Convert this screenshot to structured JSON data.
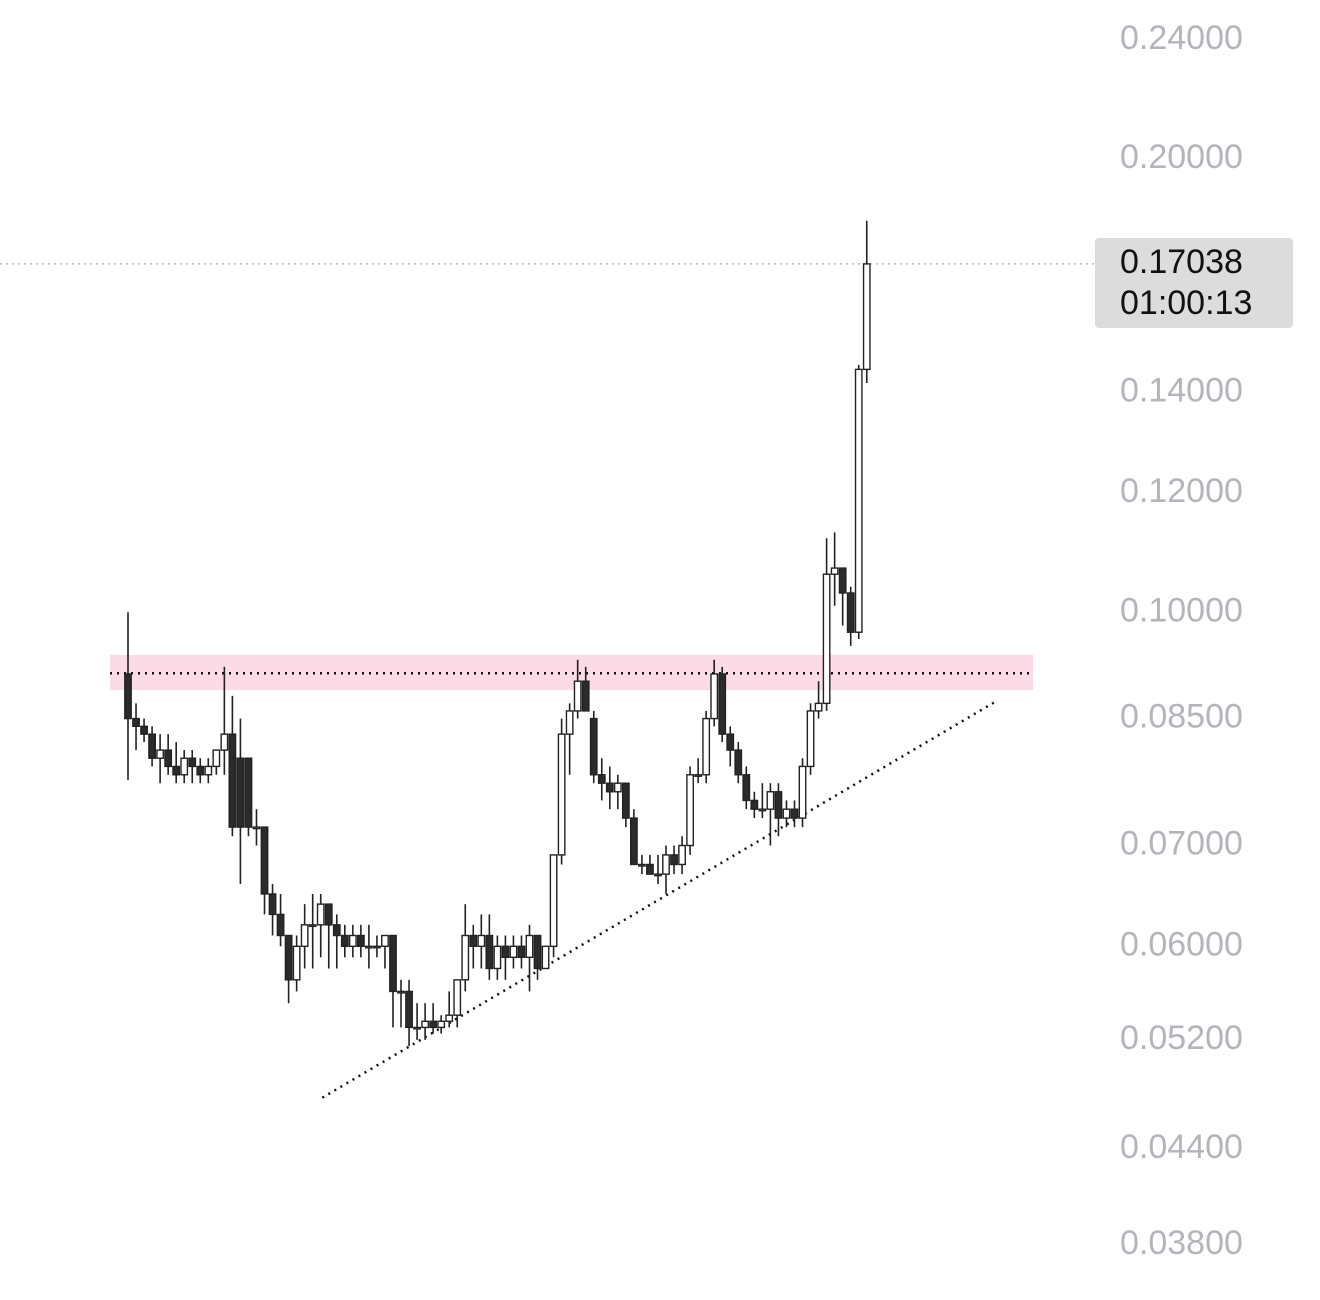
{
  "chart_data": {
    "type": "candlestick",
    "open": [
      0.091,
      0.085,
      0.084,
      0.083,
      0.08,
      0.081,
      0.079,
      0.078,
      0.08,
      0.079,
      0.078,
      0.079,
      0.081,
      0.083,
      0.08,
      0.08,
      0.072,
      0.072,
      0.065,
      0.063,
      0.061,
      0.057,
      0.06,
      0.062,
      0.062,
      0.064,
      0.062,
      0.061,
      0.06,
      0.061,
      0.06,
      0.06,
      0.06,
      0.061,
      0.056,
      0.056,
      0.053,
      0.053,
      0.0535,
      0.053,
      0.0535,
      0.054,
      0.057,
      0.061,
      0.06,
      0.061,
      0.058,
      0.06,
      0.059,
      0.06,
      0.059,
      0.061,
      0.058,
      0.06,
      0.069,
      0.083,
      0.086,
      0.09,
      0.085,
      0.078,
      0.077,
      0.076,
      0.077,
      0.073,
      0.068,
      0.068,
      0.067,
      0.067,
      0.069,
      0.068,
      0.07,
      0.078,
      0.078,
      0.085,
      0.091,
      0.083,
      0.081,
      0.078,
      0.075,
      0.074,
      0.074,
      0.076,
      0.073,
      0.074,
      0.073,
      0.079,
      0.086,
      0.087,
      0.106,
      0.107,
      0.103,
      0.097,
      0.145
    ],
    "high": [
      0.1,
      0.087,
      0.085,
      0.084,
      0.083,
      0.083,
      0.082,
      0.081,
      0.081,
      0.08,
      0.08,
      0.081,
      0.092,
      0.088,
      0.085,
      0.08,
      0.074,
      0.072,
      0.066,
      0.065,
      0.061,
      0.061,
      0.064,
      0.065,
      0.065,
      0.064,
      0.063,
      0.062,
      0.062,
      0.062,
      0.062,
      0.061,
      0.061,
      0.061,
      0.057,
      0.057,
      0.055,
      0.055,
      0.055,
      0.054,
      0.056,
      0.057,
      0.064,
      0.062,
      0.063,
      0.063,
      0.061,
      0.061,
      0.061,
      0.061,
      0.062,
      0.061,
      0.06,
      0.069,
      0.085,
      0.087,
      0.093,
      0.092,
      0.086,
      0.08,
      0.079,
      0.078,
      0.077,
      0.074,
      0.069,
      0.069,
      0.069,
      0.07,
      0.07,
      0.071,
      0.079,
      0.08,
      0.086,
      0.093,
      0.092,
      0.084,
      0.082,
      0.079,
      0.076,
      0.077,
      0.077,
      0.077,
      0.075,
      0.075,
      0.08,
      0.087,
      0.09,
      0.112,
      0.113,
      0.107,
      0.104,
      0.146,
      0.182
    ],
    "low": [
      0.0774,
      0.081,
      0.082,
      0.079,
      0.077,
      0.078,
      0.077,
      0.077,
      0.077,
      0.077,
      0.077,
      0.078,
      0.078,
      0.071,
      0.066,
      0.071,
      0.07,
      0.063,
      0.061,
      0.06,
      0.055,
      0.056,
      0.058,
      0.058,
      0.059,
      0.058,
      0.058,
      0.059,
      0.059,
      0.059,
      0.058,
      0.059,
      0.058,
      0.053,
      0.053,
      0.0515,
      0.052,
      0.052,
      0.0525,
      0.0525,
      0.053,
      0.053,
      0.056,
      0.058,
      0.058,
      0.057,
      0.057,
      0.057,
      0.058,
      0.058,
      0.056,
      0.057,
      0.058,
      0.059,
      0.068,
      0.078,
      0.085,
      0.086,
      0.077,
      0.075,
      0.074,
      0.074,
      0.072,
      0.068,
      0.067,
      0.067,
      0.066,
      0.065,
      0.067,
      0.067,
      0.069,
      0.077,
      0.077,
      0.084,
      0.082,
      0.079,
      0.077,
      0.074,
      0.073,
      0.073,
      0.07,
      0.071,
      0.072,
      0.072,
      0.072,
      0.078,
      0.085,
      0.086,
      0.101,
      0.098,
      0.095,
      0.096,
      0.142
    ],
    "close": [
      0.085,
      0.084,
      0.083,
      0.08,
      0.081,
      0.079,
      0.078,
      0.08,
      0.079,
      0.078,
      0.079,
      0.081,
      0.083,
      0.072,
      0.072,
      0.072,
      0.072,
      0.065,
      0.063,
      0.061,
      0.057,
      0.06,
      0.062,
      0.062,
      0.064,
      0.062,
      0.061,
      0.06,
      0.061,
      0.06,
      0.06,
      0.06,
      0.061,
      0.056,
      0.056,
      0.053,
      0.053,
      0.0535,
      0.053,
      0.0535,
      0.054,
      0.057,
      0.061,
      0.06,
      0.061,
      0.058,
      0.06,
      0.059,
      0.06,
      0.059,
      0.061,
      0.058,
      0.06,
      0.069,
      0.083,
      0.086,
      0.09,
      0.086,
      0.078,
      0.077,
      0.076,
      0.077,
      0.073,
      0.068,
      0.068,
      0.067,
      0.067,
      0.069,
      0.068,
      0.07,
      0.078,
      0.078,
      0.085,
      0.091,
      0.083,
      0.081,
      0.078,
      0.075,
      0.074,
      0.074,
      0.076,
      0.073,
      0.074,
      0.073,
      0.079,
      0.086,
      0.087,
      0.106,
      0.107,
      0.103,
      0.097,
      0.145,
      0.17038
    ],
    "log_scale": true,
    "ylim": [
      0.0352,
      0.2551
    ],
    "yticks": [
      {
        "value": 0.24,
        "label": "0.24000"
      },
      {
        "value": 0.2,
        "label": "0.20000"
      },
      {
        "value": 0.14,
        "label": "0.14000"
      },
      {
        "value": 0.12,
        "label": "0.12000"
      },
      {
        "value": 0.1,
        "label": "0.10000"
      },
      {
        "value": 0.085,
        "label": "0.08500"
      },
      {
        "value": 0.07,
        "label": "0.07000"
      },
      {
        "value": 0.06,
        "label": "0.06000"
      },
      {
        "value": 0.052,
        "label": "0.05200"
      },
      {
        "value": 0.044,
        "label": "0.04400"
      },
      {
        "value": 0.038,
        "label": "0.03800"
      }
    ],
    "last_price": 0.17038,
    "countdown": "01:00:13",
    "zone": [
      0.0888,
      0.0937
    ],
    "level": 0.0911,
    "trendline": [
      {
        "x": 24.2,
        "y": 0.0476
      },
      {
        "x": 108.3,
        "y": 0.0874
      }
    ]
  }
}
